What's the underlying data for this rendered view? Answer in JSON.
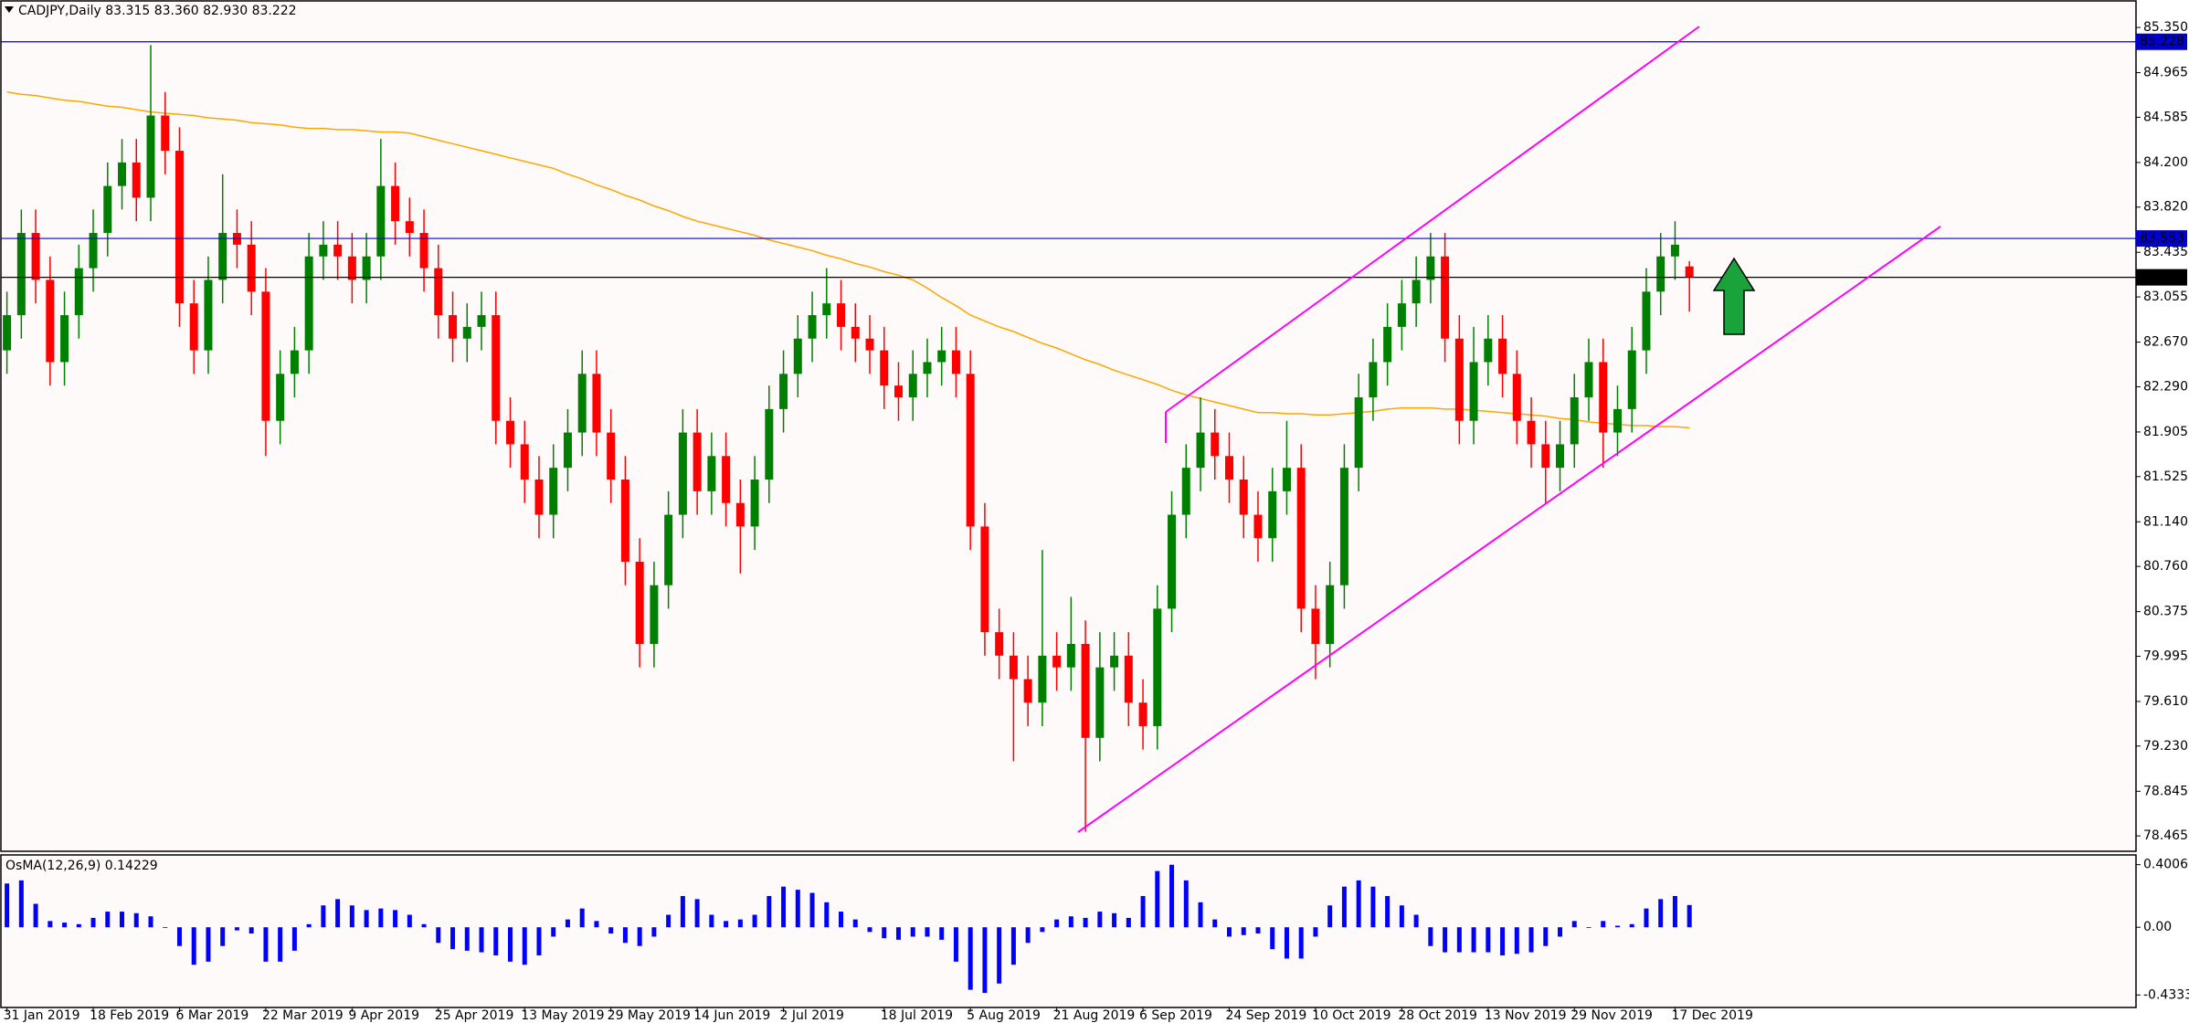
{
  "chart_data": [
    {
      "type": "candlestick",
      "title": "CADJPY,Daily 83.315 83.360 82.930 83.222",
      "up_color": "#008000",
      "down_color": "#ff0000",
      "categories": [
        "31 Jan 2019",
        null,
        null,
        null,
        null,
        null,
        "18 Feb 2019",
        null,
        null,
        null,
        null,
        null,
        "6 Mar 2019",
        null,
        null,
        null,
        null,
        null,
        "22 Mar 2019",
        null,
        null,
        null,
        null,
        null,
        "9 Apr 2019",
        null,
        null,
        null,
        null,
        null,
        "25 Apr 2019",
        null,
        null,
        null,
        null,
        null,
        "13 May 2019",
        null,
        null,
        null,
        null,
        null,
        "29 May 2019",
        null,
        null,
        null,
        null,
        null,
        "14 Jun 2019",
        null,
        null,
        null,
        null,
        null,
        "2 Jul 2019",
        null,
        null,
        null,
        null,
        null,
        null,
        "18 Jul 2019",
        null,
        null,
        null,
        null,
        null,
        "5 Aug 2019",
        null,
        null,
        null,
        null,
        null,
        "21 Aug 2019",
        null,
        null,
        null,
        null,
        null,
        "6 Sep 2019",
        null,
        null,
        null,
        null,
        null,
        "24 Sep 2019",
        null,
        null,
        null,
        null,
        null,
        "10 Oct 2019",
        null,
        null,
        null,
        null,
        null,
        "28 Oct 2019",
        null,
        null,
        null,
        null,
        null,
        "13 Nov 2019",
        null,
        null,
        null,
        null,
        null,
        "29 Nov 2019",
        null,
        null,
        null,
        null,
        null,
        null,
        "17 Dec 2019",
        null
      ],
      "open": [
        82.6,
        82.9,
        83.6,
        83.2,
        82.5,
        82.9,
        83.3,
        83.6,
        84.0,
        84.2,
        83.9,
        84.6,
        84.3,
        83.0,
        82.6,
        83.2,
        83.6,
        83.5,
        83.1,
        82.0,
        82.4,
        82.6,
        83.4,
        83.5,
        83.4,
        83.2,
        83.4,
        84.0,
        83.7,
        83.6,
        83.3,
        82.9,
        82.7,
        82.8,
        82.9,
        82.0,
        81.8,
        81.5,
        81.2,
        81.6,
        81.9,
        82.4,
        81.9,
        81.5,
        80.8,
        80.1,
        80.6,
        81.2,
        81.9,
        81.4,
        81.7,
        81.3,
        81.1,
        81.5,
        82.1,
        82.4,
        82.7,
        82.9,
        83.0,
        82.8,
        82.7,
        82.6,
        82.3,
        82.2,
        82.4,
        82.5,
        82.6,
        82.4,
        81.1,
        80.2,
        80.0,
        79.8,
        79.6,
        80.0,
        79.9,
        80.1,
        79.3,
        79.9,
        80.0,
        79.6,
        79.4,
        80.4,
        81.2,
        81.6,
        81.9,
        81.7,
        81.5,
        81.2,
        81.0,
        81.4,
        81.6,
        80.4,
        80.1,
        80.6,
        81.6,
        82.2,
        82.5,
        82.8,
        83.0,
        83.2,
        83.4,
        82.7,
        82.0,
        82.5,
        82.7,
        82.4,
        82.0,
        81.8,
        81.6,
        81.8,
        82.2,
        82.5,
        81.9,
        82.1,
        82.6,
        83.1,
        83.4,
        83.315
      ],
      "high": [
        83.1,
        83.8,
        83.8,
        83.4,
        83.1,
        83.5,
        83.8,
        84.2,
        84.4,
        84.4,
        85.2,
        84.8,
        84.5,
        83.2,
        83.4,
        84.1,
        83.8,
        83.7,
        83.3,
        82.6,
        82.8,
        83.6,
        83.7,
        83.7,
        83.6,
        83.6,
        84.4,
        84.2,
        83.9,
        83.8,
        83.5,
        83.1,
        83.0,
        83.1,
        83.1,
        82.2,
        82.0,
        81.7,
        81.8,
        82.1,
        82.6,
        82.6,
        82.1,
        81.7,
        81.0,
        80.8,
        81.4,
        82.1,
        82.1,
        81.9,
        81.9,
        81.5,
        81.7,
        82.3,
        82.6,
        82.9,
        83.1,
        83.3,
        83.2,
        83.0,
        82.9,
        82.8,
        82.5,
        82.6,
        82.7,
        82.8,
        82.8,
        82.6,
        81.3,
        80.4,
        80.2,
        80.0,
        80.9,
        80.2,
        80.5,
        80.3,
        80.2,
        80.2,
        80.2,
        79.8,
        80.6,
        81.4,
        81.8,
        82.2,
        82.1,
        81.9,
        81.7,
        81.4,
        81.6,
        82.0,
        81.8,
        80.6,
        80.8,
        81.8,
        82.4,
        82.7,
        83.0,
        83.2,
        83.4,
        83.6,
        83.6,
        82.9,
        82.8,
        82.9,
        82.9,
        82.6,
        82.2,
        82.0,
        82.0,
        82.4,
        82.7,
        82.7,
        82.3,
        82.8,
        83.3,
        83.6,
        83.7,
        83.36
      ],
      "low": [
        82.4,
        82.7,
        83.0,
        82.3,
        82.3,
        82.7,
        83.1,
        83.4,
        83.8,
        83.7,
        83.7,
        84.1,
        82.8,
        82.4,
        82.4,
        83.0,
        83.3,
        82.9,
        81.7,
        81.8,
        82.2,
        82.4,
        83.2,
        83.2,
        83.0,
        83.0,
        83.2,
        83.5,
        83.4,
        83.1,
        82.7,
        82.5,
        82.5,
        82.6,
        81.8,
        81.6,
        81.3,
        81.0,
        81.0,
        81.4,
        81.7,
        81.7,
        81.3,
        80.6,
        79.9,
        79.9,
        80.4,
        81.0,
        81.2,
        81.2,
        81.1,
        80.7,
        80.9,
        81.3,
        81.9,
        82.2,
        82.5,
        82.7,
        82.6,
        82.5,
        82.4,
        82.1,
        82.0,
        82.0,
        82.2,
        82.3,
        82.2,
        80.9,
        80.0,
        79.8,
        79.1,
        79.4,
        79.4,
        79.7,
        79.7,
        78.5,
        79.1,
        79.7,
        79.4,
        79.2,
        79.2,
        80.2,
        81.0,
        81.4,
        81.5,
        81.3,
        81.0,
        80.8,
        80.8,
        81.2,
        80.2,
        79.8,
        79.9,
        80.4,
        81.4,
        82.0,
        82.3,
        82.6,
        82.8,
        83.0,
        82.5,
        81.8,
        81.8,
        82.3,
        82.2,
        81.8,
        81.6,
        81.3,
        81.4,
        81.6,
        82.0,
        81.6,
        81.7,
        81.9,
        82.4,
        82.9,
        83.2,
        82.93
      ],
      "close": [
        82.9,
        83.6,
        83.2,
        82.5,
        82.9,
        83.3,
        83.6,
        84.0,
        84.2,
        83.9,
        84.6,
        84.3,
        83.0,
        82.6,
        83.2,
        83.6,
        83.5,
        83.1,
        82.0,
        82.4,
        82.6,
        83.4,
        83.5,
        83.4,
        83.2,
        83.4,
        84.0,
        83.7,
        83.6,
        83.3,
        82.9,
        82.7,
        82.8,
        82.9,
        82.0,
        81.8,
        81.5,
        81.2,
        81.6,
        81.9,
        82.4,
        81.9,
        81.5,
        80.8,
        80.1,
        80.6,
        81.2,
        81.9,
        81.4,
        81.7,
        81.3,
        81.1,
        81.5,
        82.1,
        82.4,
        82.7,
        82.9,
        83.0,
        82.8,
        82.7,
        82.6,
        82.3,
        82.2,
        82.4,
        82.5,
        82.6,
        82.4,
        81.1,
        80.2,
        80.0,
        79.8,
        79.6,
        80.0,
        79.9,
        80.1,
        79.3,
        79.9,
        80.0,
        79.6,
        79.4,
        80.4,
        81.2,
        81.6,
        81.9,
        81.7,
        81.5,
        81.2,
        81.0,
        81.4,
        81.6,
        80.4,
        80.1,
        80.6,
        81.6,
        82.2,
        82.5,
        82.8,
        83.0,
        83.2,
        83.4,
        82.7,
        82.0,
        82.5,
        82.7,
        82.4,
        82.0,
        81.8,
        81.6,
        81.8,
        82.2,
        82.5,
        81.9,
        82.1,
        82.6,
        83.1,
        83.4,
        83.5,
        83.222
      ],
      "ma": {
        "color": "#ffa500",
        "values": [
          84.8,
          84.78,
          84.77,
          84.75,
          84.73,
          84.72,
          84.7,
          84.68,
          84.67,
          84.65,
          84.63,
          84.62,
          84.61,
          84.6,
          84.58,
          84.57,
          84.56,
          84.54,
          84.53,
          84.52,
          84.5,
          84.49,
          84.49,
          84.48,
          84.48,
          84.47,
          84.46,
          84.46,
          84.45,
          84.42,
          84.39,
          84.36,
          84.33,
          84.3,
          84.27,
          84.24,
          84.21,
          84.18,
          84.15,
          84.1,
          84.06,
          84.01,
          83.97,
          83.92,
          83.88,
          83.83,
          83.79,
          83.74,
          83.7,
          83.67,
          83.64,
          83.61,
          83.58,
          83.54,
          83.51,
          83.48,
          83.45,
          83.41,
          83.38,
          83.34,
          83.31,
          83.27,
          83.24,
          83.2,
          83.13,
          83.05,
          82.98,
          82.9,
          82.85,
          82.8,
          82.76,
          82.71,
          82.66,
          82.62,
          82.57,
          82.52,
          82.48,
          82.43,
          82.39,
          82.35,
          82.31,
          82.26,
          82.22,
          82.19,
          82.16,
          82.13,
          82.1,
          82.07,
          82.07,
          82.06,
          82.06,
          82.05,
          82.05,
          82.06,
          82.07,
          82.08,
          82.1,
          82.11,
          82.11,
          82.11,
          82.1,
          82.1,
          82.09,
          82.08,
          82.07,
          82.06,
          82.05,
          82.04,
          82.02,
          82.01,
          81.99,
          81.98,
          81.97,
          81.96,
          81.96,
          81.95,
          81.95,
          81.94
        ]
      },
      "hlines": [
        {
          "value": 85.228,
          "color": "#0000cd"
        },
        {
          "value": 83.553,
          "color": "#0000cd"
        },
        {
          "value": 83.222,
          "color": "#000000"
        }
      ],
      "ylim": [
        78.334,
        85.576
      ],
      "yticks": [
        {
          "value": 85.35,
          "label": "85.350"
        },
        84.965,
        84.585,
        {
          "value": 84.2,
          "label": "84.200"
        },
        {
          "value": 83.82,
          "label": "83.820"
        },
        83.435,
        83.055,
        {
          "value": 82.67,
          "label": "82.670"
        },
        {
          "value": 82.29,
          "label": "82.290"
        },
        81.905,
        81.525,
        {
          "value": 81.14,
          "label": "81.140"
        },
        {
          "value": 80.76,
          "label": "80.760"
        },
        80.375,
        79.995,
        {
          "value": 79.61,
          "label": "79.610"
        },
        {
          "value": 79.23,
          "label": "79.230"
        },
        78.845,
        78.465
      ]
    },
    {
      "type": "bar",
      "title": "OsMA(12,26,9) 0.14229",
      "color": "#0000ff",
      "values": [
        0.28,
        0.3,
        0.15,
        0.04,
        0.03,
        0.02,
        0.06,
        0.1,
        0.1,
        0.09,
        0.07,
        0,
        -0.12,
        -0.24,
        -0.22,
        -0.12,
        -0.02,
        -0.04,
        -0.22,
        -0.22,
        -0.15,
        0.02,
        0.14,
        0.18,
        0.14,
        0.11,
        0.12,
        0.11,
        0.08,
        0.02,
        -0.1,
        -0.14,
        -0.15,
        -0.16,
        -0.18,
        -0.22,
        -0.24,
        -0.18,
        -0.06,
        0.05,
        0.12,
        0.04,
        -0.04,
        -0.1,
        -0.12,
        -0.06,
        0.08,
        0.2,
        0.18,
        0.08,
        0.04,
        0.05,
        0.08,
        0.2,
        0.26,
        0.24,
        0.22,
        0.16,
        0.1,
        0.05,
        -0.03,
        -0.07,
        -0.08,
        -0.06,
        -0.06,
        -0.08,
        -0.22,
        -0.4,
        -0.42,
        -0.36,
        -0.24,
        -0.1,
        -0.03,
        0.05,
        0.07,
        0.06,
        0.1,
        0.09,
        0.06,
        0.2,
        0.36,
        0.4,
        0.3,
        0.16,
        0.05,
        -0.06,
        -0.05,
        -0.04,
        -0.14,
        -0.2,
        -0.2,
        -0.06,
        0.14,
        0.26,
        0.3,
        0.26,
        0.2,
        0.14,
        0.08,
        -0.12,
        -0.16,
        -0.16,
        -0.16,
        -0.16,
        -0.18,
        -0.17,
        -0.16,
        -0.12,
        -0.06,
        0.04,
        0,
        0.04,
        0.01,
        0.02,
        0.12,
        0.18,
        0.2,
        0.14229
      ],
      "ylim": [
        -0.5132,
        0.4628
      ],
      "yticks": [
        0.40065,
        {
          "value": 0,
          "label": "0.00"
        },
        -0.43334
      ]
    }
  ]
}
